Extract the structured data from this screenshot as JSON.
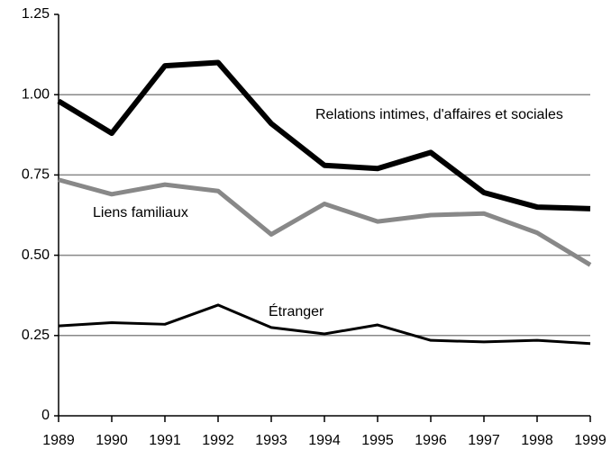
{
  "chart_data": {
    "type": "line",
    "x": [
      1989,
      1990,
      1991,
      1992,
      1993,
      1994,
      1995,
      1996,
      1997,
      1998,
      1999
    ],
    "xlim": [
      1989,
      1999
    ],
    "xticks": [
      1989,
      1990,
      1991,
      1992,
      1993,
      1994,
      1995,
      1996,
      1997,
      1998,
      1999
    ],
    "ylim": [
      0,
      1.25
    ],
    "yticks": [
      0,
      0.25,
      {
        "value": 0.5,
        "label": "0.50"
      },
      0.75,
      {
        "value": 1,
        "label": "1.00"
      },
      1.25
    ],
    "grid": true,
    "series": [
      {
        "name": "Relations intimes, d'affaires et sociales",
        "color": "#000000",
        "values": [
          0.98,
          0.88,
          1.09,
          1.1,
          0.91,
          0.78,
          0.77,
          0.82,
          0.695,
          0.65,
          0.645
        ]
      },
      {
        "name": "Liens familiaux",
        "color": "#888888",
        "values": [
          0.735,
          0.69,
          0.72,
          0.7,
          0.565,
          0.66,
          0.605,
          0.625,
          0.63,
          0.57,
          0.47
        ]
      },
      {
        "name": "Étranger",
        "color": "#000000",
        "values": [
          0.28,
          0.29,
          0.285,
          0.345,
          0.275,
          0.255,
          0.283,
          0.235,
          0.23,
          0.235,
          0.225
        ]
      }
    ]
  }
}
